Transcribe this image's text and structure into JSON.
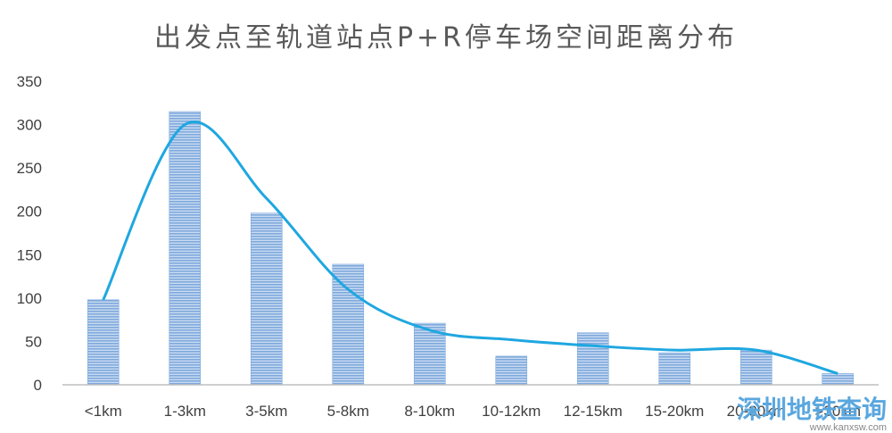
{
  "chart_data": {
    "type": "bar",
    "title": "出发点至轨道站点P+R停车场空间距离分布",
    "categories": [
      "<1km",
      "1-3km",
      "3-5km",
      "5-8km",
      "8-10km",
      "10-12km",
      "12-15km",
      "15-20km",
      "20-30km",
      ">30km"
    ],
    "values": [
      98,
      315,
      198,
      139,
      71,
      33,
      60,
      37,
      40,
      13
    ],
    "curve_values": [
      98,
      300,
      215,
      110,
      63,
      52,
      45,
      40,
      40,
      13
    ],
    "ylim": [
      0,
      350
    ],
    "yticks": [
      0,
      50,
      100,
      150,
      200,
      250,
      300,
      350
    ],
    "xlabel": "",
    "ylabel": "",
    "grid": false,
    "legend": "none",
    "colors": {
      "bar": "#7fa9dc",
      "bar_stripe": "#c9dbf2",
      "curve": "#1fa7e0",
      "axis": "#bfbfbf"
    }
  },
  "watermark": {
    "text": "深圳地铁查询",
    "url": "www.kanxsw.com"
  }
}
